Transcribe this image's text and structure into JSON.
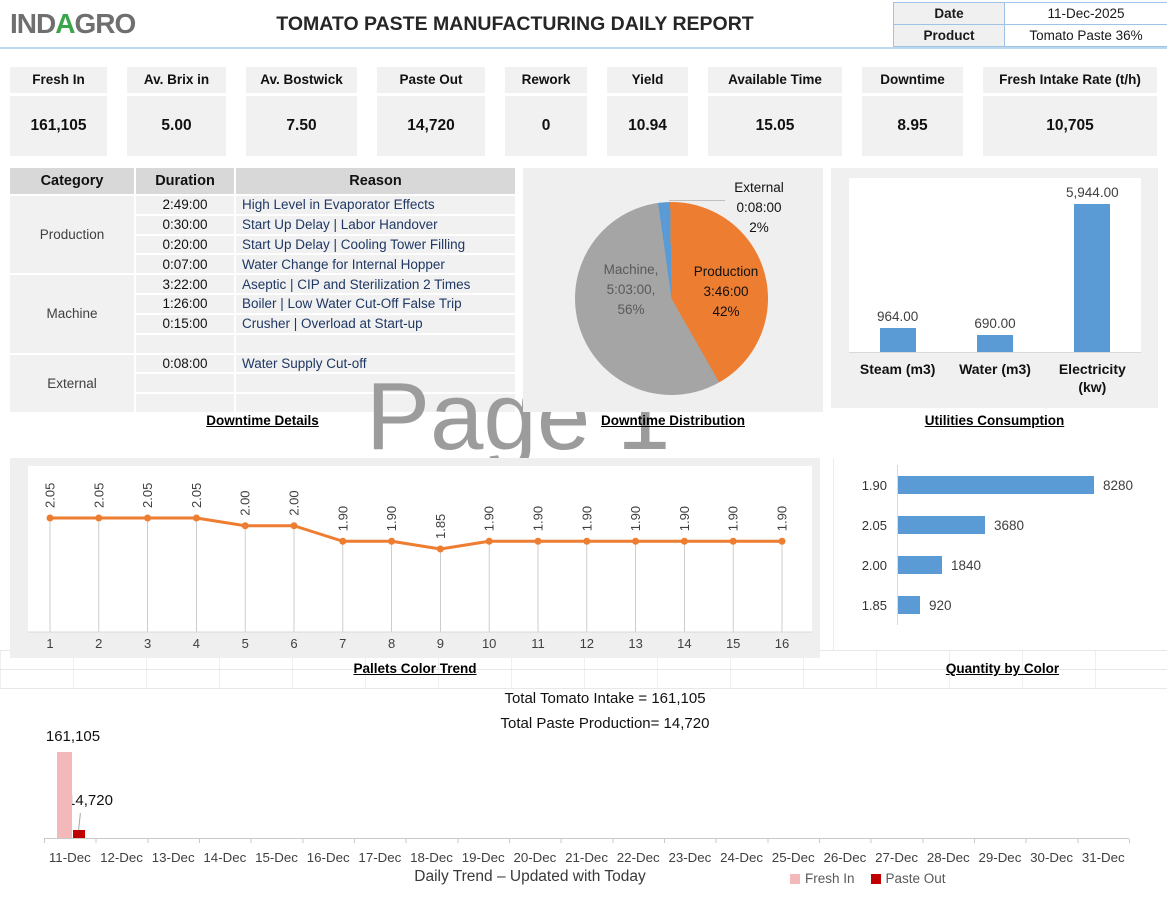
{
  "header": {
    "logo": {
      "part1": "IND",
      "part2": "A",
      "part3": "GRO"
    },
    "title": "TOMATO PASTE MANUFACTURING DAILY REPORT",
    "info": {
      "date_label": "Date",
      "date_value": "11-Dec-2025",
      "product_label": "Product",
      "product_value": "Tomato Paste 36%"
    }
  },
  "kpis": [
    {
      "label": "Fresh In",
      "value": "161,105"
    },
    {
      "label": "Av. Brix in",
      "value": "5.00"
    },
    {
      "label": "Av. Bostwick",
      "value": "7.50"
    },
    {
      "label": "Paste Out",
      "value": "14,720"
    },
    {
      "label": "Rework",
      "value": "0"
    },
    {
      "label": "Yield",
      "value": "10.94"
    },
    {
      "label": "Available Time",
      "value": "15.05"
    },
    {
      "label": "Downtime",
      "value": "8.95"
    },
    {
      "label": "Fresh Intake Rate (t/h)",
      "value": "10,705"
    }
  ],
  "downtime_table": {
    "headers": [
      "Category",
      "Duration",
      "Reason"
    ],
    "groups": [
      {
        "category": "Production",
        "rows": [
          {
            "duration": "2:49:00",
            "reason": "High Level in Evaporator Effects"
          },
          {
            "duration": "0:30:00",
            "reason": "Start Up Delay | Labor Handover"
          },
          {
            "duration": "0:20:00",
            "reason": "Start Up Delay | Cooling Tower Filling"
          },
          {
            "duration": "0:07:00",
            "reason": "Water Change for Internal Hopper"
          }
        ]
      },
      {
        "category": "Machine",
        "rows": [
          {
            "duration": "3:22:00",
            "reason": "Aseptic | CIP and Sterilization 2 Times"
          },
          {
            "duration": "1:26:00",
            "reason": "Boiler | Low Water Cut-Off False Trip"
          },
          {
            "duration": "0:15:00",
            "reason": "Crusher | Overload at Start-up"
          },
          {
            "duration": "",
            "reason": ""
          }
        ]
      },
      {
        "category": "External",
        "rows": [
          {
            "duration": "0:08:00",
            "reason": "Water Supply Cut-off"
          },
          {
            "duration": "",
            "reason": ""
          },
          {
            "duration": "",
            "reason": ""
          }
        ]
      }
    ],
    "caption": "Downtime Details"
  },
  "watermark": "Page 1",
  "totals": {
    "intake": "Total Tomato Intake = 161,105",
    "production": "Total Paste Production= 14,720"
  },
  "chart_data": [
    {
      "id": "downtime_pie",
      "type": "pie",
      "title": "Downtime Distribution",
      "start_angle_deg": -8,
      "slices": [
        {
          "name": "External",
          "duration": "0:08:00",
          "pct": 2,
          "color": "#5B9BD5"
        },
        {
          "name": "Production",
          "duration": "3:46:00",
          "pct": 42,
          "color": "#ED7D31"
        },
        {
          "name": "Machine",
          "duration": "5:03:00",
          "pct": 56,
          "color": "#A5A5A5"
        }
      ],
      "label_external": [
        "External",
        "0:08:00",
        "2%"
      ],
      "label_production": [
        "Production",
        "3:46:00",
        "42%"
      ],
      "label_machine": [
        "Machine,",
        "5:03:00,",
        "56%"
      ]
    },
    {
      "id": "utilities",
      "type": "bar",
      "title": "Utilities Consumption",
      "categories": [
        "Steam (m3)",
        "Water (m3)",
        "Electricity (kw)"
      ],
      "values": [
        964,
        690,
        5944
      ],
      "labels": [
        "964.00",
        "690.00",
        "5,944.00"
      ],
      "color": "#5B9BD5",
      "ylim": [
        0,
        7000
      ],
      "grid": false
    },
    {
      "id": "pallets",
      "type": "line",
      "title": "Pallets Color Trend",
      "x": [
        1,
        2,
        3,
        4,
        5,
        6,
        7,
        8,
        9,
        10,
        11,
        12,
        13,
        14,
        15,
        16
      ],
      "values": [
        2.05,
        2.05,
        2.05,
        2.05,
        2.0,
        2.0,
        1.9,
        1.9,
        1.85,
        1.9,
        1.9,
        1.9,
        1.9,
        1.9,
        1.9,
        1.9
      ],
      "point_labels": [
        "2.05",
        "2.05",
        "2.05",
        "2.05",
        "2.00",
        "2.00",
        "1.90",
        "1.90",
        "1.85",
        "1.90",
        "1.90",
        "1.90",
        "1.90",
        "1.90",
        "1.90",
        "1.90"
      ],
      "color": "#ED7D31",
      "drop_lines": true,
      "grid": false
    },
    {
      "id": "qty_by_color",
      "type": "bar",
      "orientation": "horizontal",
      "title": "Quantity by Color",
      "categories": [
        "1.90",
        "2.05",
        "2.00",
        "1.85"
      ],
      "values": [
        8280,
        3680,
        1840,
        920
      ],
      "labels": [
        "8280",
        "3680",
        "1840",
        "920"
      ],
      "color": "#5B9BD5",
      "grid": false
    },
    {
      "id": "daily_trend",
      "type": "bar",
      "title": "Daily Trend – Updated with Today",
      "categories": [
        "11-Dec",
        "12-Dec",
        "13-Dec",
        "14-Dec",
        "15-Dec",
        "16-Dec",
        "17-Dec",
        "18-Dec",
        "19-Dec",
        "20-Dec",
        "21-Dec",
        "22-Dec",
        "23-Dec",
        "24-Dec",
        "25-Dec",
        "26-Dec",
        "27-Dec",
        "28-Dec",
        "29-Dec",
        "30-Dec",
        "31-Dec"
      ],
      "series": [
        {
          "name": "Fresh In",
          "color": "#F2B8BA",
          "values": [
            161105,
            0,
            0,
            0,
            0,
            0,
            0,
            0,
            0,
            0,
            0,
            0,
            0,
            0,
            0,
            0,
            0,
            0,
            0,
            0,
            0
          ]
        },
        {
          "name": "Paste Out",
          "color": "#C00000",
          "values": [
            14720,
            0,
            0,
            0,
            0,
            0,
            0,
            0,
            0,
            0,
            0,
            0,
            0,
            0,
            0,
            0,
            0,
            0,
            0,
            0,
            0
          ]
        }
      ],
      "value_labels": {
        "fresh_in": "161,105",
        "paste_out": "14,720"
      },
      "legend_position": "bottom"
    }
  ]
}
